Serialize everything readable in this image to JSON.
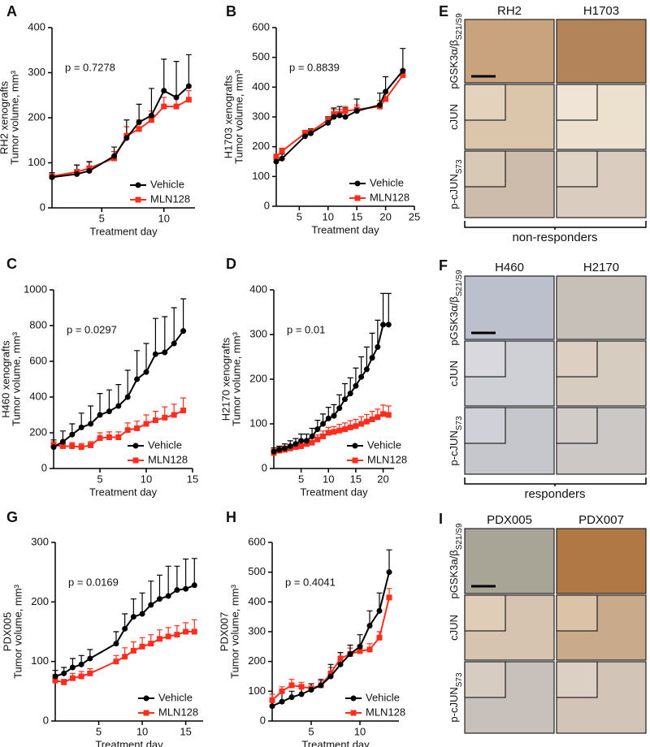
{
  "chart_data": [
    {
      "type": "line",
      "letter": "A",
      "ylabel": [
        "RH2 xenografts",
        "Tumor volume, mm³"
      ],
      "xlabel": "Treatment day",
      "annotation": "p = 0.7278",
      "legend": "lower right",
      "xlim": [
        1,
        12.5
      ],
      "xticks": [
        5,
        10
      ],
      "ylim": [
        0,
        400
      ],
      "yticks": [
        0,
        100,
        200,
        300,
        400
      ],
      "x": [
        1,
        3,
        4,
        6,
        7,
        8,
        9,
        10,
        11,
        12
      ],
      "series": [
        {
          "name": "Vehicle",
          "color": "#000000",
          "marker": "circle",
          "values": [
            68,
            75,
            82,
            115,
            155,
            190,
            205,
            260,
            245,
            270
          ],
          "errors": [
            10,
            20,
            20,
            20,
            40,
            40,
            60,
            70,
            80,
            70
          ]
        },
        {
          "name": "MLN128",
          "color": "#ff2d1e",
          "marker": "square",
          "values": [
            70,
            80,
            88,
            110,
            160,
            175,
            195,
            225,
            225,
            240
          ],
          "errors": [
            8,
            15,
            15,
            15,
            20,
            20,
            20,
            20,
            20,
            20
          ]
        }
      ]
    },
    {
      "type": "line",
      "letter": "B",
      "ylabel": [
        "H1703 xenografts",
        "Tumor volume, mm³"
      ],
      "xlabel": "Treatment day",
      "annotation": "p = 0.8839",
      "legend": "lower right",
      "xlim": [
        1,
        25
      ],
      "xticks": [
        5,
        10,
        15,
        20,
        25
      ],
      "ylim": [
        0,
        600
      ],
      "yticks": [
        0,
        100,
        200,
        300,
        400,
        500,
        600
      ],
      "x": [
        1,
        2,
        6,
        7,
        10,
        11,
        12,
        13,
        15,
        19,
        20,
        23
      ],
      "series": [
        {
          "name": "Vehicle",
          "color": "#000000",
          "marker": "circle",
          "values": [
            150,
            160,
            235,
            245,
            280,
            300,
            305,
            300,
            320,
            340,
            385,
            455
          ],
          "errors": [
            10,
            15,
            15,
            15,
            20,
            30,
            30,
            30,
            40,
            40,
            50,
            75
          ]
        },
        {
          "name": "MLN128",
          "color": "#ff2d1e",
          "marker": "square",
          "values": [
            165,
            185,
            245,
            250,
            290,
            310,
            310,
            320,
            325,
            335,
            360,
            440
          ],
          "errors": [
            10,
            10,
            10,
            10,
            10,
            15,
            15,
            15,
            15,
            20,
            20,
            20
          ]
        }
      ]
    },
    {
      "type": "line",
      "letter": "C",
      "ylabel": [
        "H460 xenografts",
        "Tumor volume, mm³"
      ],
      "xlabel": "Treatment day",
      "annotation": "p = 0.0297",
      "legend": "lower right",
      "xlim": [
        0,
        15
      ],
      "xticks": [
        5,
        10,
        15
      ],
      "ylim": [
        0,
        1000
      ],
      "yticks": [
        0,
        200,
        400,
        600,
        800,
        1000
      ],
      "x": [
        0,
        1,
        2,
        3,
        4,
        5,
        6,
        7,
        8,
        9,
        10,
        11,
        12,
        13,
        14
      ],
      "series": [
        {
          "name": "Vehicle",
          "color": "#000000",
          "marker": "circle",
          "values": [
            120,
            150,
            190,
            230,
            250,
            300,
            320,
            350,
            400,
            500,
            540,
            640,
            650,
            700,
            770
          ],
          "errors": [
            40,
            60,
            60,
            80,
            100,
            120,
            120,
            120,
            150,
            160,
            160,
            200,
            200,
            200,
            180
          ]
        },
        {
          "name": "MLN128",
          "color": "#ff2d1e",
          "marker": "square",
          "values": [
            130,
            125,
            125,
            120,
            130,
            170,
            175,
            175,
            215,
            225,
            250,
            270,
            285,
            300,
            325
          ],
          "errors": [
            20,
            20,
            20,
            20,
            20,
            30,
            30,
            30,
            40,
            40,
            50,
            50,
            60,
            60,
            70
          ]
        }
      ]
    },
    {
      "type": "line",
      "letter": "D",
      "ylabel": [
        "H2170 xenografts",
        "Tumor volume, mm³"
      ],
      "xlabel": "Treatment day",
      "annotation": "p = 0.01",
      "legend": "lower right",
      "xlim": [
        0,
        22
      ],
      "xticks": [
        5,
        10,
        15,
        20
      ],
      "ylim": [
        0,
        400
      ],
      "yticks": [
        0,
        100,
        200,
        300,
        400
      ],
      "x": [
        0,
        1,
        2,
        3,
        4,
        5,
        6,
        7,
        8,
        9,
        10,
        11,
        12,
        13,
        14,
        15,
        16,
        17,
        18,
        19,
        20,
        21
      ],
      "series": [
        {
          "name": "Vehicle",
          "color": "#000000",
          "marker": "circle",
          "values": [
            38,
            42,
            45,
            50,
            55,
            62,
            62,
            72,
            88,
            100,
            112,
            118,
            135,
            155,
            168,
            185,
            205,
            222,
            248,
            272,
            322,
            322
          ],
          "errors": [
            8,
            8,
            10,
            12,
            12,
            15,
            15,
            18,
            20,
            22,
            25,
            25,
            30,
            35,
            35,
            40,
            45,
            50,
            55,
            60,
            70,
            70
          ]
        },
        {
          "name": "MLN128",
          "color": "#ff2d1e",
          "marker": "square",
          "values": [
            35,
            40,
            42,
            45,
            48,
            50,
            55,
            58,
            65,
            72,
            80,
            82,
            85,
            88,
            92,
            95,
            100,
            105,
            110,
            115,
            122,
            120
          ],
          "errors": [
            8,
            8,
            8,
            8,
            8,
            10,
            10,
            10,
            10,
            12,
            12,
            12,
            14,
            14,
            15,
            15,
            16,
            16,
            18,
            18,
            20,
            20
          ]
        }
      ]
    },
    {
      "type": "line",
      "letter": "G",
      "ylabel": [
        "PDX005",
        "Tumor volume, mm³"
      ],
      "xlabel": "Treatment day",
      "annotation": "p = 0.0169",
      "legend": "lower right",
      "xlim": [
        0,
        17
      ],
      "xticks": [
        5,
        10,
        15
      ],
      "ylim": [
        0,
        300
      ],
      "yticks": [
        0,
        100,
        200,
        300
      ],
      "x": [
        0,
        1,
        2,
        3,
        4,
        7,
        8,
        9,
        10,
        11,
        12,
        13,
        14,
        15,
        16
      ],
      "series": [
        {
          "name": "Vehicle",
          "color": "#000000",
          "marker": "circle",
          "values": [
            75,
            80,
            90,
            95,
            105,
            130,
            155,
            175,
            180,
            195,
            205,
            210,
            220,
            222,
            228
          ],
          "errors": [
            10,
            10,
            15,
            15,
            15,
            20,
            25,
            30,
            35,
            40,
            40,
            50,
            40,
            50,
            45
          ]
        },
        {
          "name": "MLN128",
          "color": "#ff2d1e",
          "marker": "square",
          "values": [
            68,
            65,
            72,
            75,
            80,
            100,
            108,
            118,
            125,
            130,
            138,
            142,
            145,
            150,
            150
          ],
          "errors": [
            10,
            5,
            8,
            8,
            8,
            10,
            15,
            15,
            15,
            15,
            15,
            15,
            15,
            15,
            20
          ]
        }
      ]
    },
    {
      "type": "line",
      "letter": "H",
      "ylabel": [
        "PDX007",
        "Tumor volume, mm³"
      ],
      "xlabel": "Treatment day",
      "annotation": "p = 0.4041",
      "legend": "lower right",
      "xlim": [
        1,
        14
      ],
      "xticks": [
        5,
        10
      ],
      "ylim": [
        0,
        600
      ],
      "yticks": [
        0,
        100,
        200,
        300,
        400,
        500,
        600
      ],
      "x": [
        1,
        2,
        3,
        4,
        5,
        6,
        7,
        8,
        9,
        10,
        11,
        12,
        13
      ],
      "series": [
        {
          "name": "Vehicle",
          "color": "#000000",
          "marker": "circle",
          "values": [
            50,
            65,
            80,
            90,
            105,
            120,
            150,
            190,
            225,
            250,
            320,
            370,
            500
          ],
          "errors": [
            20,
            30,
            20,
            20,
            20,
            20,
            40,
            40,
            30,
            40,
            50,
            60,
            75
          ]
        },
        {
          "name": "MLN128",
          "color": "#ff2d1e",
          "marker": "square",
          "values": [
            70,
            100,
            120,
            115,
            110,
            120,
            160,
            210,
            225,
            235,
            240,
            280,
            415
          ],
          "errors": [
            20,
            15,
            20,
            15,
            15,
            15,
            20,
            20,
            20,
            20,
            20,
            20,
            30
          ]
        }
      ]
    }
  ],
  "ihc_panels": [
    {
      "letter": "E",
      "columns": [
        "RH2",
        "H1703"
      ],
      "caption": "non-responders",
      "rows": [
        {
          "label": "pGSK3α/β",
          "sub": "S21/S9"
        },
        {
          "label": "cJUN"
        },
        {
          "label": "p-cJUN",
          "sub": "S73"
        }
      ]
    },
    {
      "letter": "F",
      "columns": [
        "H460",
        "H2170"
      ],
      "caption": "responders",
      "rows": [
        {
          "label": "pGSK3α/β",
          "sub": "S21/S9"
        },
        {
          "label": "cJUN"
        },
        {
          "label": "p-cJUN",
          "sub": "S73"
        }
      ]
    },
    {
      "letter": "I",
      "columns": [
        "PDX005",
        "PDX007"
      ],
      "rows": [
        {
          "label": "pGSK3a/β",
          "sub": "S21/S9"
        },
        {
          "label": "cJUN"
        },
        {
          "label": "p-cJUN",
          "sub": "S73"
        }
      ]
    }
  ]
}
